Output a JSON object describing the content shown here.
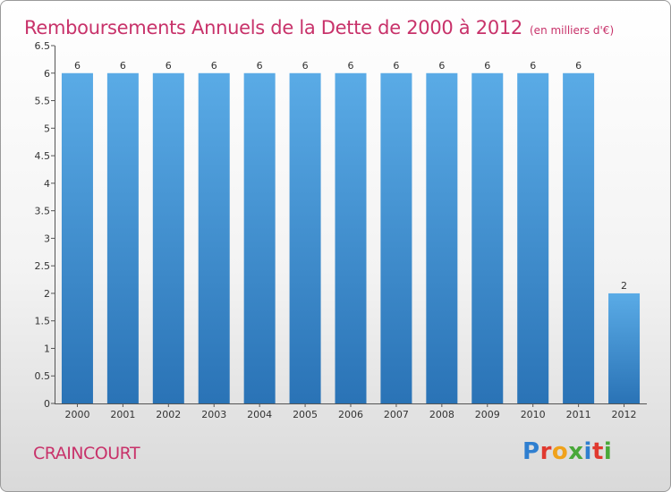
{
  "header": {
    "title": "Remboursements Annuels de la Dette de 2000 à 2012",
    "unit": "(en milliers d'€)"
  },
  "footer": {
    "commune": "CRAINCOURT",
    "brand": "Proxiti",
    "brand_colors": [
      "#2f7fd0",
      "#e0392f",
      "#f0a21b",
      "#49a839",
      "#2f7fd0",
      "#e0392f",
      "#49a839"
    ]
  },
  "colors": {
    "accent": "#c8326a",
    "bar_top": "#5aabe6",
    "bar_bottom": "#2a73b6"
  },
  "chart_data": {
    "type": "bar",
    "title": "Remboursements Annuels de la Dette de 2000 à 2012",
    "xlabel": "",
    "ylabel": "",
    "categories": [
      "2000",
      "2001",
      "2002",
      "2003",
      "2004",
      "2005",
      "2006",
      "2007",
      "2008",
      "2009",
      "2010",
      "2011",
      "2012"
    ],
    "values": [
      6,
      6,
      6,
      6,
      6,
      6,
      6,
      6,
      6,
      6,
      6,
      6,
      2
    ],
    "data_labels": [
      "6",
      "6",
      "6",
      "6",
      "6",
      "6",
      "6",
      "6",
      "6",
      "6",
      "6",
      "6",
      "2"
    ],
    "ylim": [
      0,
      6.5
    ],
    "yticks": [
      0,
      0.5,
      1,
      1.5,
      2,
      2.5,
      3,
      3.5,
      4,
      4.5,
      5,
      5.5,
      6,
      6.5
    ],
    "ytick_labels": [
      "0",
      "0.5",
      "1",
      "1.5",
      "2",
      "2.5",
      "3",
      "3.5",
      "4",
      "4.5",
      "5",
      "5.5",
      "6",
      "6.5"
    ],
    "grid": false,
    "legend": "none"
  }
}
